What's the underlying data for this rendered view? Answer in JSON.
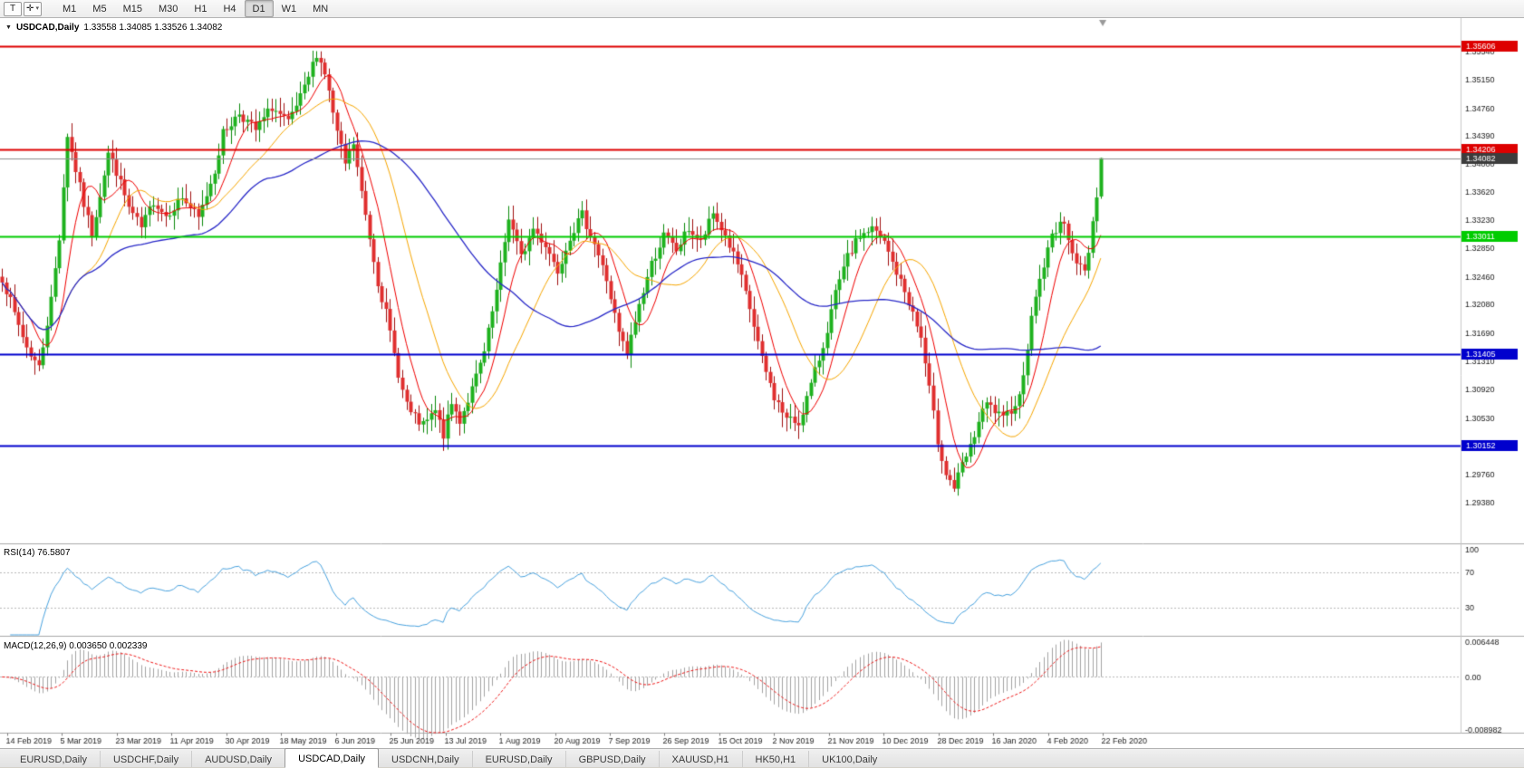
{
  "toolbar": {
    "text_tool_label": "T",
    "cursor_tool_glyph": "✛",
    "caret_glyph": "▾",
    "timeframes": [
      "M1",
      "M5",
      "M15",
      "M30",
      "H1",
      "H4",
      "D1",
      "W1",
      "MN"
    ],
    "active_timeframe": "D1"
  },
  "chart": {
    "menu_glyph": "▼",
    "title": "USDCAD,Daily",
    "ohlc_text": "1.33558 1.34085 1.33526 1.34082"
  },
  "chart_data": {
    "type": "candlestick",
    "symbol": "USDCAD",
    "timeframe": "Daily",
    "current": {
      "open": 1.33558,
      "high": 1.34085,
      "low": 1.33526,
      "close": 1.34082
    },
    "price_scale": {
      "top": 1.3597,
      "bottom": 1.2883
    },
    "price_axis_labels": [
      "1.35930",
      "1.35540",
      "1.35150",
      "1.34760",
      "1.34390",
      "1.34000",
      "1.33620",
      "1.33230",
      "1.32850",
      "1.32460",
      "1.32080",
      "1.31690",
      "1.31310",
      "1.30920",
      "1.30530",
      "1.30140",
      "1.29760",
      "1.29380"
    ],
    "levels": [
      {
        "price": 1.35606,
        "label": "1.35606",
        "color": "#dd0000",
        "width": 2
      },
      {
        "price": 1.34206,
        "label": "1.34206",
        "color": "#dd0000",
        "width": 2
      },
      {
        "price": 1.34082,
        "label": "1.34082",
        "color": "#8c8c8c",
        "box": "#3c3c3c",
        "width": 1
      },
      {
        "price": 1.33011,
        "label": "1.33011",
        "color": "#00cc00",
        "width": 2
      },
      {
        "price": 1.31405,
        "label": "1.31405",
        "color": "#0000cd",
        "width": 2
      },
      {
        "price": 1.30152,
        "label": "1.30152",
        "color": "#0000cd",
        "width": 2
      }
    ],
    "num_candles": 270,
    "shift_fraction": 0.755,
    "seed": 7,
    "clamp_high": 1.35606,
    "clamp_low": 1.29345,
    "up_fill": "#1eb21e",
    "up_border": "#0c8a0c",
    "down_fill": "#e02e2e",
    "down_border": "#a01010",
    "moving_averages": [
      {
        "period": 8,
        "color": "#f00000",
        "width": 1
      },
      {
        "period": 20,
        "color": "#f7a600",
        "width": 1
      },
      {
        "period": 50,
        "color": "#2929c8",
        "width": 1.3
      }
    ],
    "anchors": [
      [
        0,
        1.3245
      ],
      [
        3,
        1.3195
      ],
      [
        6,
        1.315
      ],
      [
        9,
        1.3122
      ],
      [
        12,
        1.3215
      ],
      [
        14,
        1.33
      ],
      [
        16,
        1.344
      ],
      [
        18,
        1.3392
      ],
      [
        20,
        1.3345
      ],
      [
        22,
        1.3305
      ],
      [
        24,
        1.336
      ],
      [
        26,
        1.3415
      ],
      [
        28,
        1.339
      ],
      [
        31,
        1.334
      ],
      [
        34,
        1.3312
      ],
      [
        37,
        1.335
      ],
      [
        40,
        1.333
      ],
      [
        44,
        1.3355
      ],
      [
        48,
        1.3325
      ],
      [
        52,
        1.3392
      ],
      [
        54,
        1.3442
      ],
      [
        58,
        1.347
      ],
      [
        62,
        1.3446
      ],
      [
        66,
        1.3478
      ],
      [
        70,
        1.3455
      ],
      [
        74,
        1.3502
      ],
      [
        77,
        1.3552
      ],
      [
        79,
        1.3525
      ],
      [
        82,
        1.3442
      ],
      [
        84,
        1.34
      ],
      [
        86,
        1.3428
      ],
      [
        88,
        1.336
      ],
      [
        90,
        1.33
      ],
      [
        92,
        1.324
      ],
      [
        94,
        1.3196
      ],
      [
        96,
        1.314
      ],
      [
        98,
        1.309
      ],
      [
        100,
        1.3058
      ],
      [
        103,
        1.3042
      ],
      [
        106,
        1.3062
      ],
      [
        108,
        1.303
      ],
      [
        110,
        1.3072
      ],
      [
        112,
        1.305
      ],
      [
        115,
        1.3092
      ],
      [
        118,
        1.3142
      ],
      [
        121,
        1.3225
      ],
      [
        124,
        1.3328
      ],
      [
        127,
        1.3272
      ],
      [
        130,
        1.3312
      ],
      [
        133,
        1.329
      ],
      [
        136,
        1.3255
      ],
      [
        139,
        1.3302
      ],
      [
        142,
        1.333
      ],
      [
        145,
        1.3292
      ],
      [
        148,
        1.3242
      ],
      [
        151,
        1.3168
      ],
      [
        153,
        1.314
      ],
      [
        156,
        1.3208
      ],
      [
        159,
        1.3264
      ],
      [
        162,
        1.3302
      ],
      [
        165,
        1.3282
      ],
      [
        168,
        1.3312
      ],
      [
        171,
        1.3292
      ],
      [
        174,
        1.3332
      ],
      [
        177,
        1.3302
      ],
      [
        180,
        1.3262
      ],
      [
        183,
        1.3202
      ],
      [
        186,
        1.3132
      ],
      [
        189,
        1.3082
      ],
      [
        192,
        1.3052
      ],
      [
        195,
        1.3046
      ],
      [
        198,
        1.3098
      ],
      [
        201,
        1.3152
      ],
      [
        204,
        1.3222
      ],
      [
        207,
        1.3272
      ],
      [
        210,
        1.3302
      ],
      [
        213,
        1.3312
      ],
      [
        216,
        1.3292
      ],
      [
        219,
        1.3252
      ],
      [
        222,
        1.3212
      ],
      [
        225,
        1.3162
      ],
      [
        227,
        1.3092
      ],
      [
        229,
        1.3022
      ],
      [
        231,
        1.2978
      ],
      [
        233,
        1.2958
      ],
      [
        235,
        1.2988
      ],
      [
        237,
        1.3012
      ],
      [
        239,
        1.3048
      ],
      [
        241,
        1.3072
      ],
      [
        243,
        1.3062
      ],
      [
        245,
        1.305
      ],
      [
        247,
        1.3066
      ],
      [
        249,
        1.3082
      ],
      [
        251,
        1.3152
      ],
      [
        253,
        1.3222
      ],
      [
        255,
        1.3262
      ],
      [
        257,
        1.3302
      ],
      [
        259,
        1.3322
      ],
      [
        261,
        1.3302
      ],
      [
        263,
        1.3266
      ],
      [
        265,
        1.3252
      ],
      [
        266,
        1.3282
      ],
      [
        267,
        1.3322
      ],
      [
        268,
        1.336
      ],
      [
        269,
        1.3408
      ]
    ],
    "rsi": {
      "label": "RSI(14) 76.5807",
      "period": 14,
      "last_value": 76.5807,
      "levels": [
        70,
        30
      ],
      "axis_labels": [
        "100",
        "70",
        "30"
      ],
      "color": "#4aa3df"
    },
    "macd": {
      "label": "MACD(12,26,9) 0.003650 0.002339",
      "fast": 12,
      "slow": 26,
      "signal_period": 9,
      "macd_value": 0.00365,
      "signal_value": 0.002339,
      "max": 0.006448,
      "min": -0.008982,
      "axis_labels": [
        "0.006448",
        "0.00",
        "-0.008982"
      ],
      "histogram_color": "#a4a4a4",
      "signal_color": "#f01818"
    },
    "date_labels": [
      "14 Feb 2019",
      "5 Mar 2019",
      "23 Mar 2019",
      "11 Apr 2019",
      "30 Apr 2019",
      "18 May 2019",
      "6 Jun 2019",
      "25 Jun 2019",
      "13 Jul 2019",
      "1 Aug 2019",
      "20 Aug 2019",
      "7 Sep 2019",
      "26 Sep 2019",
      "15 Oct 2019",
      "2 Nov 2019",
      "21 Nov 2019",
      "10 Dec 2019",
      "28 Dec 2019",
      "16 Jan 2020",
      "4 Feb 2020",
      "22 Feb 2020"
    ]
  },
  "tabs": {
    "items": [
      "EURUSD,Daily",
      "USDCHF,Daily",
      "AUDUSD,Daily",
      "USDCAD,Daily",
      "USDCNH,Daily",
      "EURUSD,Daily",
      "GBPUSD,Daily",
      "XAUUSD,H1",
      "HK50,H1",
      "UK100,Daily"
    ],
    "active_index": 3
  }
}
